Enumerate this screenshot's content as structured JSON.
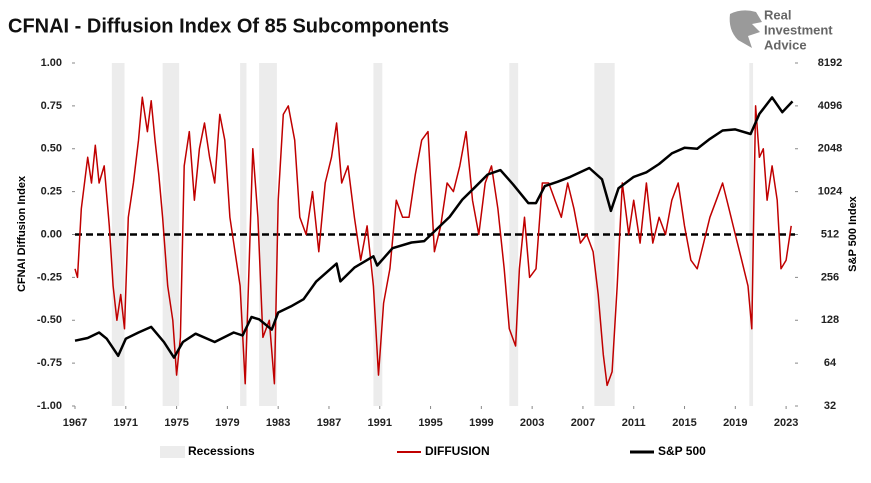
{
  "chart_data": {
    "type": "line",
    "title": "CFNAI - Diffusion Index Of 85 Subcomponents",
    "logo_text": [
      "Real",
      "Investment",
      "Advice"
    ],
    "ylabel": "CFNAI Diffusion Index",
    "y2label": "S&P 500 Index",
    "xlim": [
      1967,
      2023.7
    ],
    "xticks": [
      1967,
      1971,
      1975,
      1979,
      1983,
      1987,
      1991,
      1995,
      1999,
      2003,
      2007,
      2011,
      2015,
      2019,
      2023
    ],
    "ylim": [
      -1,
      1
    ],
    "yticks": [
      {
        "value": -1,
        "label": "-1.00"
      },
      {
        "value": -0.75,
        "label": "-0.75"
      },
      {
        "value": -0.5,
        "label": "-0.50"
      },
      {
        "value": -0.25,
        "label": "-0.25"
      },
      {
        "value": 0,
        "label": "0.00"
      },
      {
        "value": 0.25,
        "label": "0.25"
      },
      {
        "value": 0.5,
        "label": "0.50"
      },
      {
        "value": 0.75,
        "label": "0.75"
      },
      {
        "value": 1,
        "label": "1.00"
      }
    ],
    "y2lim": [
      32,
      8192
    ],
    "y2log": true,
    "y2ticks": [
      32,
      64,
      128,
      256,
      512,
      1024,
      2048,
      4096,
      8192
    ],
    "zero_line": true,
    "recessions": {
      "name": "Recessions",
      "color": "#ececec",
      "periods": [
        [
          1969.9,
          1970.9
        ],
        [
          1973.9,
          1975.2
        ],
        [
          1980.0,
          1980.5
        ],
        [
          1981.5,
          1982.9
        ],
        [
          1990.5,
          1991.2
        ],
        [
          2001.2,
          2001.9
        ],
        [
          2007.9,
          2009.5
        ],
        [
          2020.1,
          2020.4
        ]
      ]
    },
    "series": [
      {
        "name": "DIFFUSION",
        "color": "#c00000",
        "axis": "y",
        "x": [
          1967.0,
          1967.2,
          1967.5,
          1968.0,
          1968.3,
          1968.6,
          1968.9,
          1969.3,
          1969.7,
          1970.0,
          1970.3,
          1970.6,
          1970.9,
          1971.2,
          1971.6,
          1972.0,
          1972.3,
          1972.7,
          1973.0,
          1973.3,
          1973.6,
          1973.9,
          1974.3,
          1974.7,
          1975.0,
          1975.3,
          1975.6,
          1976.0,
          1976.4,
          1976.8,
          1977.2,
          1977.6,
          1978.0,
          1978.4,
          1978.8,
          1979.2,
          1979.6,
          1980.0,
          1980.4,
          1980.7,
          1981.0,
          1981.4,
          1981.8,
          1982.3,
          1982.7,
          1983.0,
          1983.4,
          1983.8,
          1984.3,
          1984.7,
          1985.2,
          1985.7,
          1986.2,
          1986.7,
          1987.2,
          1987.6,
          1988.0,
          1988.5,
          1989.0,
          1989.5,
          1990.0,
          1990.5,
          1990.9,
          1991.3,
          1991.8,
          1992.3,
          1992.8,
          1993.3,
          1993.8,
          1994.3,
          1994.8,
          1995.3,
          1995.8,
          1996.3,
          1996.8,
          1997.3,
          1997.8,
          1998.3,
          1998.8,
          1999.3,
          1999.8,
          2000.3,
          2000.8,
          2001.2,
          2001.7,
          2002.0,
          2002.4,
          2002.8,
          2003.3,
          2003.8,
          2004.3,
          2004.8,
          2005.3,
          2005.8,
          2006.3,
          2006.8,
          2007.3,
          2007.8,
          2008.2,
          2008.6,
          2008.9,
          2009.3,
          2009.7,
          2010.1,
          2010.6,
          2011.0,
          2011.5,
          2012.0,
          2012.5,
          2013.0,
          2013.5,
          2014.0,
          2014.5,
          2015.0,
          2015.5,
          2016.0,
          2016.5,
          2017.0,
          2017.5,
          2018.0,
          2018.5,
          2019.0,
          2019.5,
          2020.0,
          2020.3,
          2020.6,
          2020.9,
          2021.2,
          2021.5,
          2021.9,
          2022.3,
          2022.6,
          2023.0,
          2023.4
        ],
        "values": [
          -0.2,
          -0.25,
          0.15,
          0.45,
          0.3,
          0.52,
          0.3,
          0.4,
          0.05,
          -0.3,
          -0.5,
          -0.35,
          -0.55,
          0.1,
          0.3,
          0.55,
          0.8,
          0.6,
          0.78,
          0.55,
          0.35,
          0.1,
          -0.3,
          -0.5,
          -0.82,
          -0.6,
          0.4,
          0.6,
          0.2,
          0.5,
          0.65,
          0.45,
          0.3,
          0.7,
          0.55,
          0.1,
          -0.1,
          -0.3,
          -0.87,
          -0.2,
          0.5,
          0.1,
          -0.6,
          -0.5,
          -0.87,
          0.2,
          0.7,
          0.75,
          0.55,
          0.1,
          0.0,
          0.25,
          -0.1,
          0.3,
          0.45,
          0.65,
          0.3,
          0.4,
          0.1,
          -0.15,
          0.05,
          -0.3,
          -0.82,
          -0.4,
          -0.2,
          0.2,
          0.1,
          0.1,
          0.35,
          0.55,
          0.6,
          -0.1,
          0.05,
          0.3,
          0.25,
          0.4,
          0.6,
          0.2,
          0.0,
          0.3,
          0.4,
          0.15,
          -0.2,
          -0.55,
          -0.65,
          -0.2,
          0.1,
          -0.25,
          -0.2,
          0.3,
          0.3,
          0.2,
          0.1,
          0.3,
          0.15,
          -0.05,
          0.0,
          -0.1,
          -0.35,
          -0.7,
          -0.88,
          -0.8,
          -0.3,
          0.3,
          0.0,
          0.2,
          -0.05,
          0.3,
          -0.05,
          0.1,
          0.0,
          0.2,
          0.3,
          0.05,
          -0.15,
          -0.2,
          -0.05,
          0.1,
          0.2,
          0.3,
          0.15,
          0.0,
          -0.15,
          -0.3,
          -0.55,
          0.75,
          0.45,
          0.5,
          0.2,
          0.4,
          0.2,
          -0.2,
          -0.15,
          0.05
        ]
      },
      {
        "name": "S&P 500",
        "color": "#000000",
        "axis": "y2",
        "x": [
          1967,
          1968,
          1968.9,
          1969.5,
          1970.4,
          1971,
          1972,
          1973,
          1974,
          1974.8,
          1975.5,
          1976.5,
          1978,
          1979.5,
          1980.2,
          1980.9,
          1981.5,
          1982.5,
          1983,
          1984,
          1985,
          1986,
          1987.6,
          1987.9,
          1989,
          1990.5,
          1990.8,
          1992,
          1993.5,
          1994.5,
          1995.5,
          1996.5,
          1997.5,
          1998.5,
          1999.5,
          2000.5,
          2001.5,
          2002.7,
          2003.3,
          2004,
          2005,
          2006,
          2007.5,
          2008.5,
          2009.2,
          2009.8,
          2011,
          2012,
          2013,
          2014,
          2015,
          2016,
          2017,
          2018,
          2019,
          2020.2,
          2020.9,
          2021.9,
          2022.7,
          2023.5
        ],
        "values": [
          92,
          96,
          105,
          95,
          72,
          95,
          105,
          115,
          90,
          70,
          90,
          103,
          90,
          105,
          100,
          135,
          130,
          110,
          145,
          160,
          180,
          240,
          320,
          240,
          300,
          360,
          310,
          410,
          450,
          460,
          560,
          680,
          900,
          1100,
          1350,
          1450,
          1150,
          850,
          850,
          1120,
          1200,
          1300,
          1500,
          1250,
          750,
          1080,
          1300,
          1400,
          1600,
          1900,
          2080,
          2050,
          2400,
          2750,
          2800,
          2600,
          3600,
          4700,
          3700,
          4400
        ]
      }
    ]
  }
}
